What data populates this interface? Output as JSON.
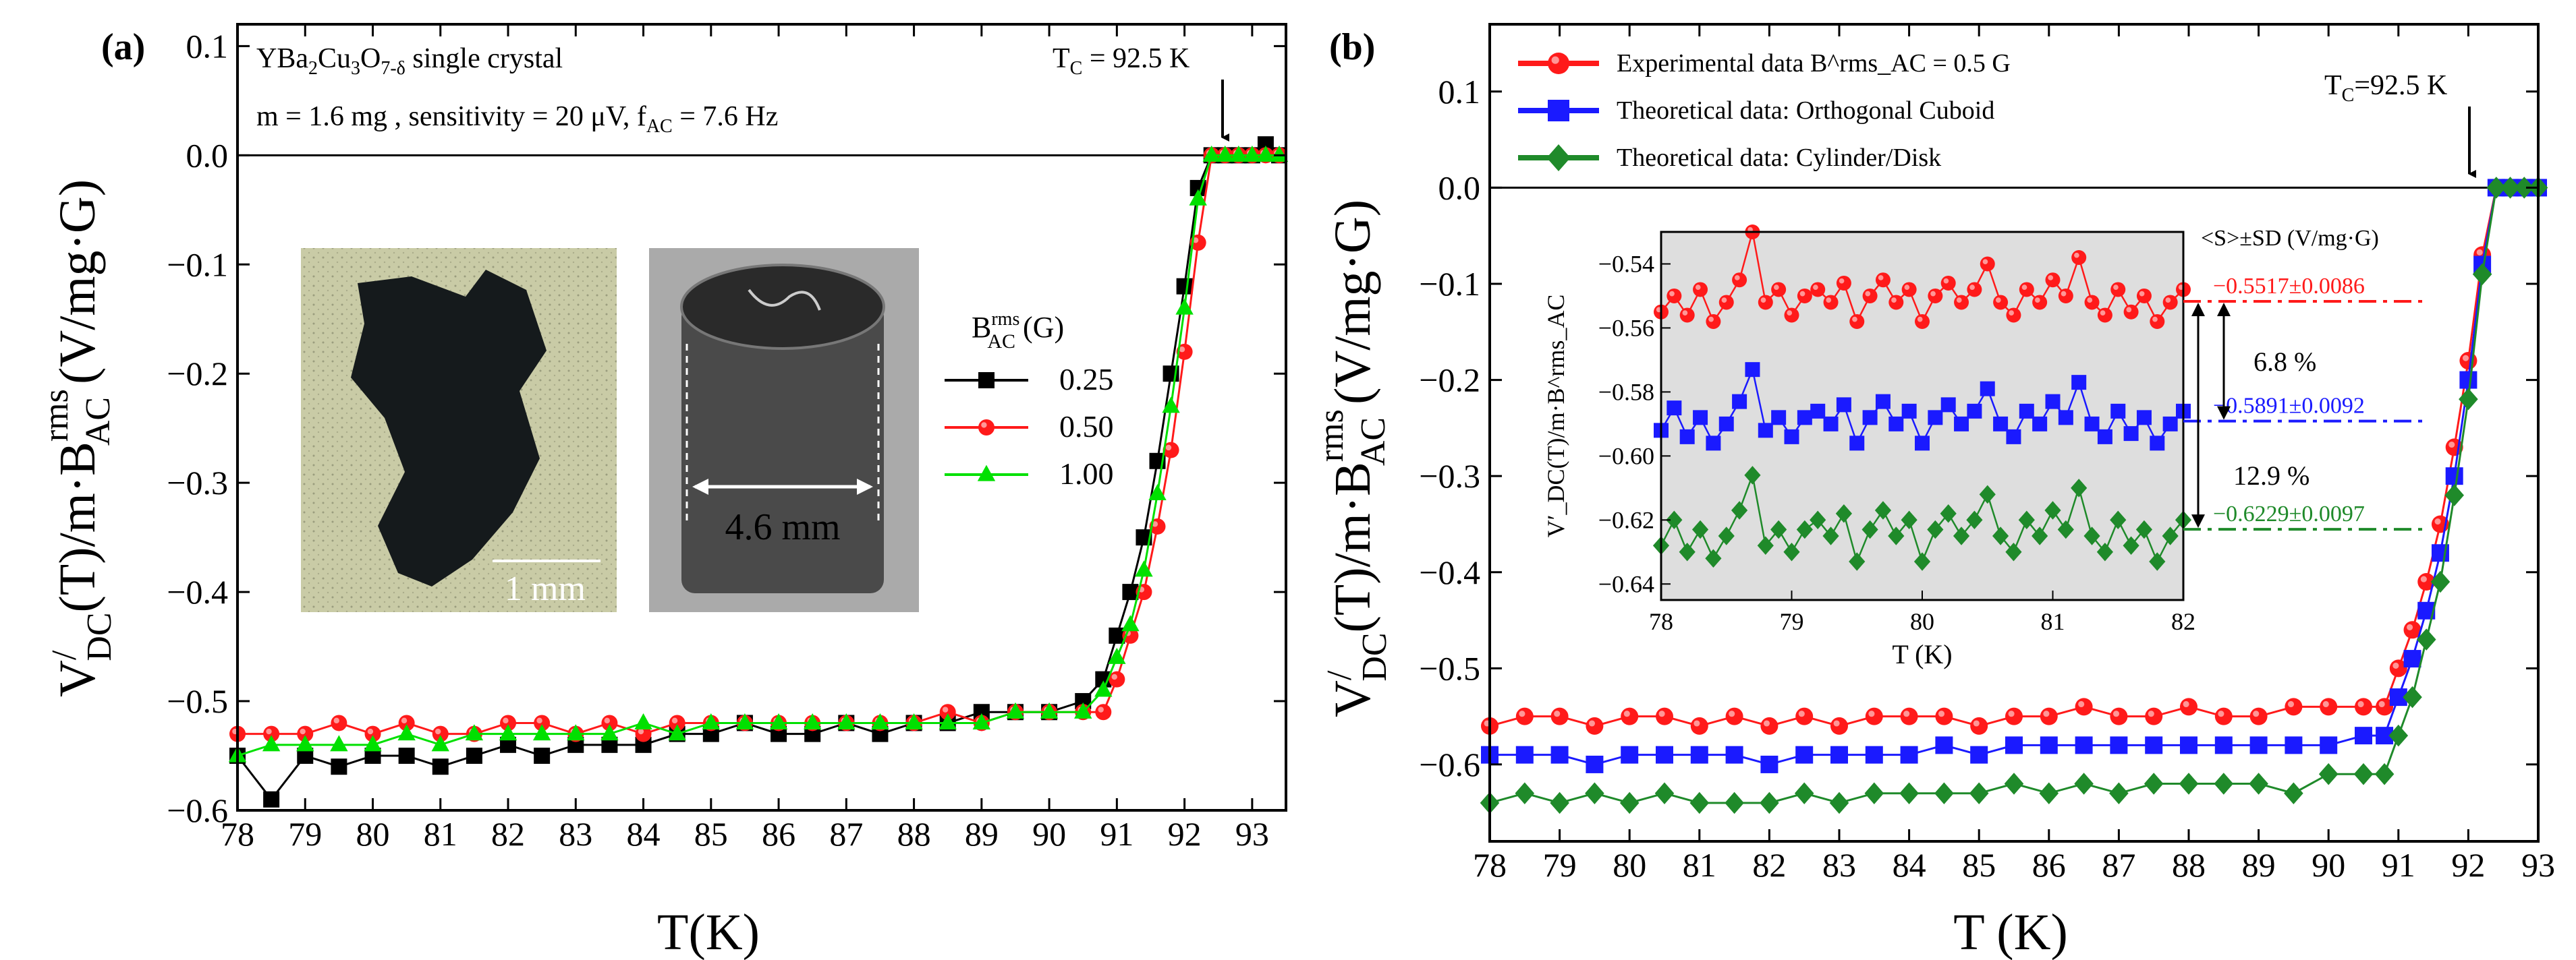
{
  "colors": {
    "black": "#000000",
    "red": "#ff1a1a",
    "green": "#00e000",
    "blue": "#1a1aff",
    "darkgreen": "#1f8a2a",
    "inset_bg": "#dedede"
  },
  "panel_a": {
    "label": "(a)",
    "material": "YBa₂Cu₃O₇₋δ single crystal",
    "conditions": "m = 1.6 mg , sensitivity = 20 μV, f_AC = 7.6 Hz",
    "tc_label": "T_C = 92.5 K",
    "xlabel": "T(K)",
    "ylabel": "V′_DC(T)/m·B^rms_AC (V/mg·G)",
    "photo1_scale": "1 mm",
    "photo2_scale": "4.6 mm",
    "legend_title": "B^rms_AC (G)",
    "legend_entries": [
      "0.25",
      "0.50",
      "1.00"
    ]
  },
  "panel_b": {
    "label": "(b)",
    "tc_label": "T_C=92.5 K",
    "xlabel": "T (K)",
    "ylabel": "V′_DC(T)/m·B^rms_AC (V/mg·G)",
    "legend_entries": [
      "Experimental data  B^rms_AC = 0.5 G",
      "Theoretical data: Orthogonal Cuboid",
      "Theoretical data: Cylinder/Disk"
    ],
    "inset_header": "<S>±SD (V/mg·G)",
    "inset_values": [
      "−0.5517±0.0086",
      "−0.5891±0.0092",
      "−0.6229±0.0097"
    ],
    "inset_pcts": [
      "6.8 %",
      "12.9 %"
    ],
    "inset_xlabel": "T (K)",
    "inset_ylabel": "V′_DC(T)/m·B^rms_AC"
  },
  "chart_data": [
    {
      "type": "scatter",
      "title": "(a) YBa2Cu3O7-δ single crystal",
      "xlabel": "T(K)",
      "ylabel": "V'DC(T)/m·B_AC^rms (V/mg·G)",
      "xlim": [
        78,
        93.5
      ],
      "ylim": [
        -0.6,
        0.12
      ],
      "xticks": [
        78,
        79,
        80,
        81,
        82,
        83,
        84,
        85,
        86,
        87,
        88,
        89,
        90,
        91,
        92,
        93
      ],
      "yticks": [
        -0.6,
        -0.5,
        -0.4,
        -0.3,
        -0.2,
        -0.1,
        0.0,
        0.1
      ],
      "legend_title": "B_AC^rms (G)",
      "series": [
        {
          "name": "0.25",
          "color": "#000000",
          "marker": "square",
          "x": [
            78.0,
            78.5,
            79.0,
            79.5,
            80.0,
            80.5,
            81.0,
            81.5,
            82.0,
            82.5,
            83.0,
            83.5,
            84.0,
            84.5,
            85.0,
            85.5,
            86.0,
            86.5,
            87.0,
            87.5,
            88.0,
            88.5,
            89.0,
            89.5,
            90.0,
            90.5,
            90.8,
            91.0,
            91.2,
            91.4,
            91.6,
            91.8,
            92.0,
            92.2,
            92.4,
            92.6,
            92.8,
            93.0,
            93.2,
            93.4
          ],
          "y": [
            -0.55,
            -0.59,
            -0.55,
            -0.56,
            -0.55,
            -0.55,
            -0.56,
            -0.55,
            -0.54,
            -0.55,
            -0.54,
            -0.54,
            -0.54,
            -0.53,
            -0.53,
            -0.52,
            -0.53,
            -0.53,
            -0.52,
            -0.53,
            -0.52,
            -0.52,
            -0.51,
            -0.51,
            -0.51,
            -0.5,
            -0.48,
            -0.44,
            -0.4,
            -0.35,
            -0.28,
            -0.2,
            -0.12,
            -0.03,
            0.0,
            0.0,
            0.0,
            0.0,
            0.01,
            0.0
          ]
        },
        {
          "name": "0.50",
          "color": "#ff1a1a",
          "marker": "circle",
          "x": [
            78.0,
            78.5,
            79.0,
            79.5,
            80.0,
            80.5,
            81.0,
            81.5,
            82.0,
            82.5,
            83.0,
            83.5,
            84.0,
            84.5,
            85.0,
            85.5,
            86.0,
            86.5,
            87.0,
            87.5,
            88.0,
            88.5,
            89.0,
            89.5,
            90.0,
            90.5,
            90.8,
            91.0,
            91.2,
            91.4,
            91.6,
            91.8,
            92.0,
            92.2,
            92.4,
            92.6,
            92.8,
            93.0,
            93.2,
            93.4
          ],
          "y": [
            -0.53,
            -0.53,
            -0.53,
            -0.52,
            -0.53,
            -0.52,
            -0.53,
            -0.53,
            -0.52,
            -0.52,
            -0.53,
            -0.52,
            -0.53,
            -0.52,
            -0.52,
            -0.52,
            -0.52,
            -0.52,
            -0.52,
            -0.52,
            -0.52,
            -0.51,
            -0.52,
            -0.51,
            -0.51,
            -0.51,
            -0.51,
            -0.48,
            -0.44,
            -0.4,
            -0.34,
            -0.27,
            -0.18,
            -0.08,
            0.0,
            0.0,
            0.0,
            0.0,
            0.0,
            0.0
          ]
        },
        {
          "name": "1.00",
          "color": "#00e000",
          "marker": "triangle",
          "x": [
            78.0,
            78.5,
            79.0,
            79.5,
            80.0,
            80.5,
            81.0,
            81.5,
            82.0,
            82.5,
            83.0,
            83.5,
            84.0,
            84.5,
            85.0,
            85.5,
            86.0,
            86.5,
            87.0,
            87.5,
            88.0,
            88.5,
            89.0,
            89.5,
            90.0,
            90.5,
            90.8,
            91.0,
            91.2,
            91.4,
            91.6,
            91.8,
            92.0,
            92.2,
            92.4,
            92.6,
            92.8,
            93.0,
            93.2,
            93.4
          ],
          "y": [
            -0.55,
            -0.54,
            -0.54,
            -0.54,
            -0.54,
            -0.53,
            -0.54,
            -0.53,
            -0.53,
            -0.53,
            -0.53,
            -0.53,
            -0.52,
            -0.53,
            -0.52,
            -0.52,
            -0.52,
            -0.52,
            -0.52,
            -0.52,
            -0.52,
            -0.52,
            -0.52,
            -0.51,
            -0.51,
            -0.51,
            -0.49,
            -0.46,
            -0.43,
            -0.38,
            -0.31,
            -0.23,
            -0.14,
            -0.04,
            0.0,
            0.0,
            0.0,
            0.0,
            0.0,
            0.0
          ]
        }
      ],
      "annotations": [
        "T_C = 92.5 K"
      ]
    },
    {
      "type": "scatter",
      "title": "(b)",
      "xlabel": "T (K)",
      "ylabel": "V'DC(T)/m·B_AC^rms (V/mg·G)",
      "xlim": [
        78,
        93
      ],
      "ylim": [
        -0.68,
        0.17
      ],
      "xticks": [
        78,
        79,
        80,
        81,
        82,
        83,
        84,
        85,
        86,
        87,
        88,
        89,
        90,
        91,
        92,
        93
      ],
      "yticks": [
        -0.6,
        -0.5,
        -0.4,
        -0.3,
        -0.2,
        -0.1,
        0.0,
        0.1
      ],
      "series": [
        {
          "name": "Experimental data B_AC^rms = 0.5 G",
          "color": "#ff1a1a",
          "marker": "circle",
          "x": [
            78.0,
            78.5,
            79.0,
            79.5,
            80.0,
            80.5,
            81.0,
            81.5,
            82.0,
            82.5,
            83.0,
            83.5,
            84.0,
            84.5,
            85.0,
            85.5,
            86.0,
            86.5,
            87.0,
            87.5,
            88.0,
            88.5,
            89.0,
            89.5,
            90.0,
            90.5,
            90.8,
            91.0,
            91.2,
            91.4,
            91.6,
            91.8,
            92.0,
            92.2,
            92.4,
            92.6,
            92.8,
            93.0
          ],
          "y": [
            -0.56,
            -0.55,
            -0.55,
            -0.56,
            -0.55,
            -0.55,
            -0.56,
            -0.55,
            -0.56,
            -0.55,
            -0.56,
            -0.55,
            -0.55,
            -0.55,
            -0.56,
            -0.55,
            -0.55,
            -0.54,
            -0.55,
            -0.55,
            -0.54,
            -0.55,
            -0.55,
            -0.54,
            -0.54,
            -0.54,
            -0.54,
            -0.5,
            -0.46,
            -0.41,
            -0.35,
            -0.27,
            -0.18,
            -0.07,
            0.0,
            0.0,
            0.0,
            0.0
          ]
        },
        {
          "name": "Theoretical data: Orthogonal Cuboid",
          "color": "#1a1aff",
          "marker": "square",
          "x": [
            78.0,
            78.5,
            79.0,
            79.5,
            80.0,
            80.5,
            81.0,
            81.5,
            82.0,
            82.5,
            83.0,
            83.5,
            84.0,
            84.5,
            85.0,
            85.5,
            86.0,
            86.5,
            87.0,
            87.5,
            88.0,
            88.5,
            89.0,
            89.5,
            90.0,
            90.5,
            90.8,
            91.0,
            91.2,
            91.4,
            91.6,
            91.8,
            92.0,
            92.2,
            92.4,
            92.6,
            92.8,
            93.0
          ],
          "y": [
            -0.59,
            -0.59,
            -0.59,
            -0.6,
            -0.59,
            -0.59,
            -0.59,
            -0.59,
            -0.6,
            -0.59,
            -0.59,
            -0.59,
            -0.59,
            -0.58,
            -0.59,
            -0.58,
            -0.58,
            -0.58,
            -0.58,
            -0.58,
            -0.58,
            -0.58,
            -0.58,
            -0.58,
            -0.58,
            -0.57,
            -0.57,
            -0.53,
            -0.49,
            -0.44,
            -0.38,
            -0.3,
            -0.2,
            -0.08,
            0.0,
            0.0,
            0.0,
            0.0
          ]
        },
        {
          "name": "Theoretical data: Cylinder/Disk",
          "color": "#1f8a2a",
          "marker": "diamond",
          "x": [
            78.0,
            78.5,
            79.0,
            79.5,
            80.0,
            80.5,
            81.0,
            81.5,
            82.0,
            82.5,
            83.0,
            83.5,
            84.0,
            84.5,
            85.0,
            85.5,
            86.0,
            86.5,
            87.0,
            87.5,
            88.0,
            88.5,
            89.0,
            89.5,
            90.0,
            90.5,
            90.8,
            91.0,
            91.2,
            91.4,
            91.6,
            91.8,
            92.0,
            92.2,
            92.4,
            92.6,
            92.8,
            93.0
          ],
          "y": [
            -0.64,
            -0.63,
            -0.64,
            -0.63,
            -0.64,
            -0.63,
            -0.64,
            -0.64,
            -0.64,
            -0.63,
            -0.64,
            -0.63,
            -0.63,
            -0.63,
            -0.63,
            -0.62,
            -0.63,
            -0.62,
            -0.63,
            -0.62,
            -0.62,
            -0.62,
            -0.62,
            -0.63,
            -0.61,
            -0.61,
            -0.61,
            -0.57,
            -0.53,
            -0.47,
            -0.41,
            -0.32,
            -0.22,
            -0.09,
            0.0,
            0.0,
            0.0,
            0.0
          ]
        }
      ],
      "annotations": [
        "T_C=92.5 K"
      ],
      "inset": {
        "xlabel": "T (K)",
        "xlim": [
          78,
          82
        ],
        "ylim": [
          -0.645,
          -0.53
        ],
        "xticks": [
          78,
          79,
          80,
          81,
          82
        ],
        "yticks": [
          -0.54,
          -0.56,
          -0.58,
          -0.6,
          -0.62,
          -0.64
        ],
        "series": [
          {
            "name": "Experimental",
            "color": "#ff1a1a",
            "marker": "circle",
            "x": [
              78.0,
              78.1,
              78.2,
              78.3,
              78.4,
              78.5,
              78.6,
              78.7,
              78.8,
              78.9,
              79.0,
              79.1,
              79.2,
              79.3,
              79.4,
              79.5,
              79.6,
              79.7,
              79.8,
              79.9,
              80.0,
              80.1,
              80.2,
              80.3,
              80.4,
              80.5,
              80.6,
              80.7,
              80.8,
              80.9,
              81.0,
              81.1,
              81.2,
              81.3,
              81.4,
              81.5,
              81.6,
              81.7,
              81.8,
              81.9,
              82.0
            ],
            "y": [
              -0.555,
              -0.55,
              -0.556,
              -0.548,
              -0.558,
              -0.552,
              -0.545,
              -0.53,
              -0.552,
              -0.548,
              -0.556,
              -0.55,
              -0.548,
              -0.552,
              -0.546,
              -0.558,
              -0.55,
              -0.545,
              -0.552,
              -0.548,
              -0.558,
              -0.55,
              -0.546,
              -0.552,
              -0.548,
              -0.54,
              -0.552,
              -0.556,
              -0.548,
              -0.552,
              -0.545,
              -0.55,
              -0.538,
              -0.552,
              -0.556,
              -0.548,
              -0.555,
              -0.55,
              -0.558,
              -0.552,
              -0.548
            ]
          },
          {
            "name": "Orthogonal Cuboid",
            "color": "#1a1aff",
            "marker": "square",
            "x": [
              78.0,
              78.1,
              78.2,
              78.3,
              78.4,
              78.5,
              78.6,
              78.7,
              78.8,
              78.9,
              79.0,
              79.1,
              79.2,
              79.3,
              79.4,
              79.5,
              79.6,
              79.7,
              79.8,
              79.9,
              80.0,
              80.1,
              80.2,
              80.3,
              80.4,
              80.5,
              80.6,
              80.7,
              80.8,
              80.9,
              81.0,
              81.1,
              81.2,
              81.3,
              81.4,
              81.5,
              81.6,
              81.7,
              81.8,
              81.9,
              82.0
            ],
            "y": [
              -0.592,
              -0.585,
              -0.594,
              -0.588,
              -0.596,
              -0.59,
              -0.583,
              -0.573,
              -0.592,
              -0.588,
              -0.594,
              -0.588,
              -0.586,
              -0.59,
              -0.584,
              -0.596,
              -0.588,
              -0.583,
              -0.59,
              -0.586,
              -0.596,
              -0.588,
              -0.584,
              -0.59,
              -0.586,
              -0.579,
              -0.59,
              -0.594,
              -0.586,
              -0.59,
              -0.583,
              -0.588,
              -0.577,
              -0.59,
              -0.594,
              -0.586,
              -0.593,
              -0.588,
              -0.596,
              -0.59,
              -0.586
            ]
          },
          {
            "name": "Cylinder/Disk",
            "color": "#1f8a2a",
            "marker": "diamond",
            "x": [
              78.0,
              78.1,
              78.2,
              78.3,
              78.4,
              78.5,
              78.6,
              78.7,
              78.8,
              78.9,
              79.0,
              79.1,
              79.2,
              79.3,
              79.4,
              79.5,
              79.6,
              79.7,
              79.8,
              79.9,
              80.0,
              80.1,
              80.2,
              80.3,
              80.4,
              80.5,
              80.6,
              80.7,
              80.8,
              80.9,
              81.0,
              81.1,
              81.2,
              81.3,
              81.4,
              81.5,
              81.6,
              81.7,
              81.8,
              81.9,
              82.0
            ],
            "y": [
              -0.628,
              -0.62,
              -0.63,
              -0.623,
              -0.632,
              -0.625,
              -0.617,
              -0.606,
              -0.628,
              -0.623,
              -0.63,
              -0.623,
              -0.62,
              -0.625,
              -0.618,
              -0.633,
              -0.623,
              -0.617,
              -0.625,
              -0.62,
              -0.633,
              -0.623,
              -0.618,
              -0.625,
              -0.62,
              -0.612,
              -0.625,
              -0.63,
              -0.62,
              -0.625,
              -0.617,
              -0.623,
              -0.61,
              -0.625,
              -0.63,
              -0.62,
              -0.628,
              -0.623,
              -0.633,
              -0.625,
              -0.62
            ]
          }
        ],
        "means": [
          -0.5517,
          -0.5891,
          -0.6229
        ]
      }
    }
  ]
}
